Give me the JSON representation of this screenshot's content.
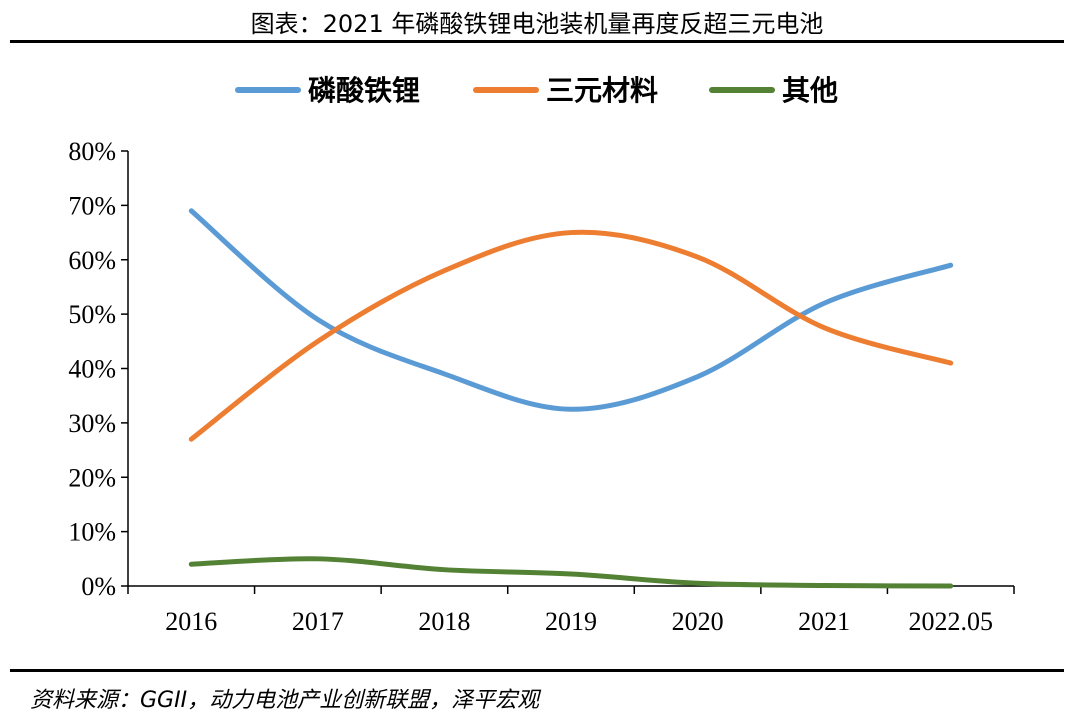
{
  "header": {
    "title": "图表：2021 年磷酸铁锂电池装机量再度反超三元电池"
  },
  "footer": {
    "source": "资料来源：GGII，动力电池产业创新联盟，泽平宏观"
  },
  "chart_data": {
    "type": "line",
    "title": "",
    "xlabel": "",
    "ylabel": "",
    "categories": [
      "2016",
      "2017",
      "2018",
      "2019",
      "2020",
      "2021",
      "2022.05"
    ],
    "ylim": [
      0,
      80
    ],
    "yticks": [
      0,
      10,
      20,
      30,
      40,
      50,
      60,
      70,
      80
    ],
    "ytick_labels": [
      "0%",
      "10%",
      "20%",
      "30%",
      "40%",
      "50%",
      "60%",
      "70%",
      "80%"
    ],
    "legend_position": "top",
    "grid": false,
    "smooth": true,
    "series": [
      {
        "name": "磷酸铁锂",
        "color": "#5b9bd5",
        "values": [
          69,
          49,
          39,
          32.5,
          38.5,
          52,
          59
        ]
      },
      {
        "name": "三元材料",
        "color": "#ed7d31",
        "values": [
          27,
          45,
          58,
          65,
          60.5,
          47.5,
          41
        ]
      },
      {
        "name": "其他",
        "color": "#548235",
        "values": [
          4,
          5,
          3,
          2.2,
          0.5,
          0.1,
          0
        ]
      }
    ]
  }
}
